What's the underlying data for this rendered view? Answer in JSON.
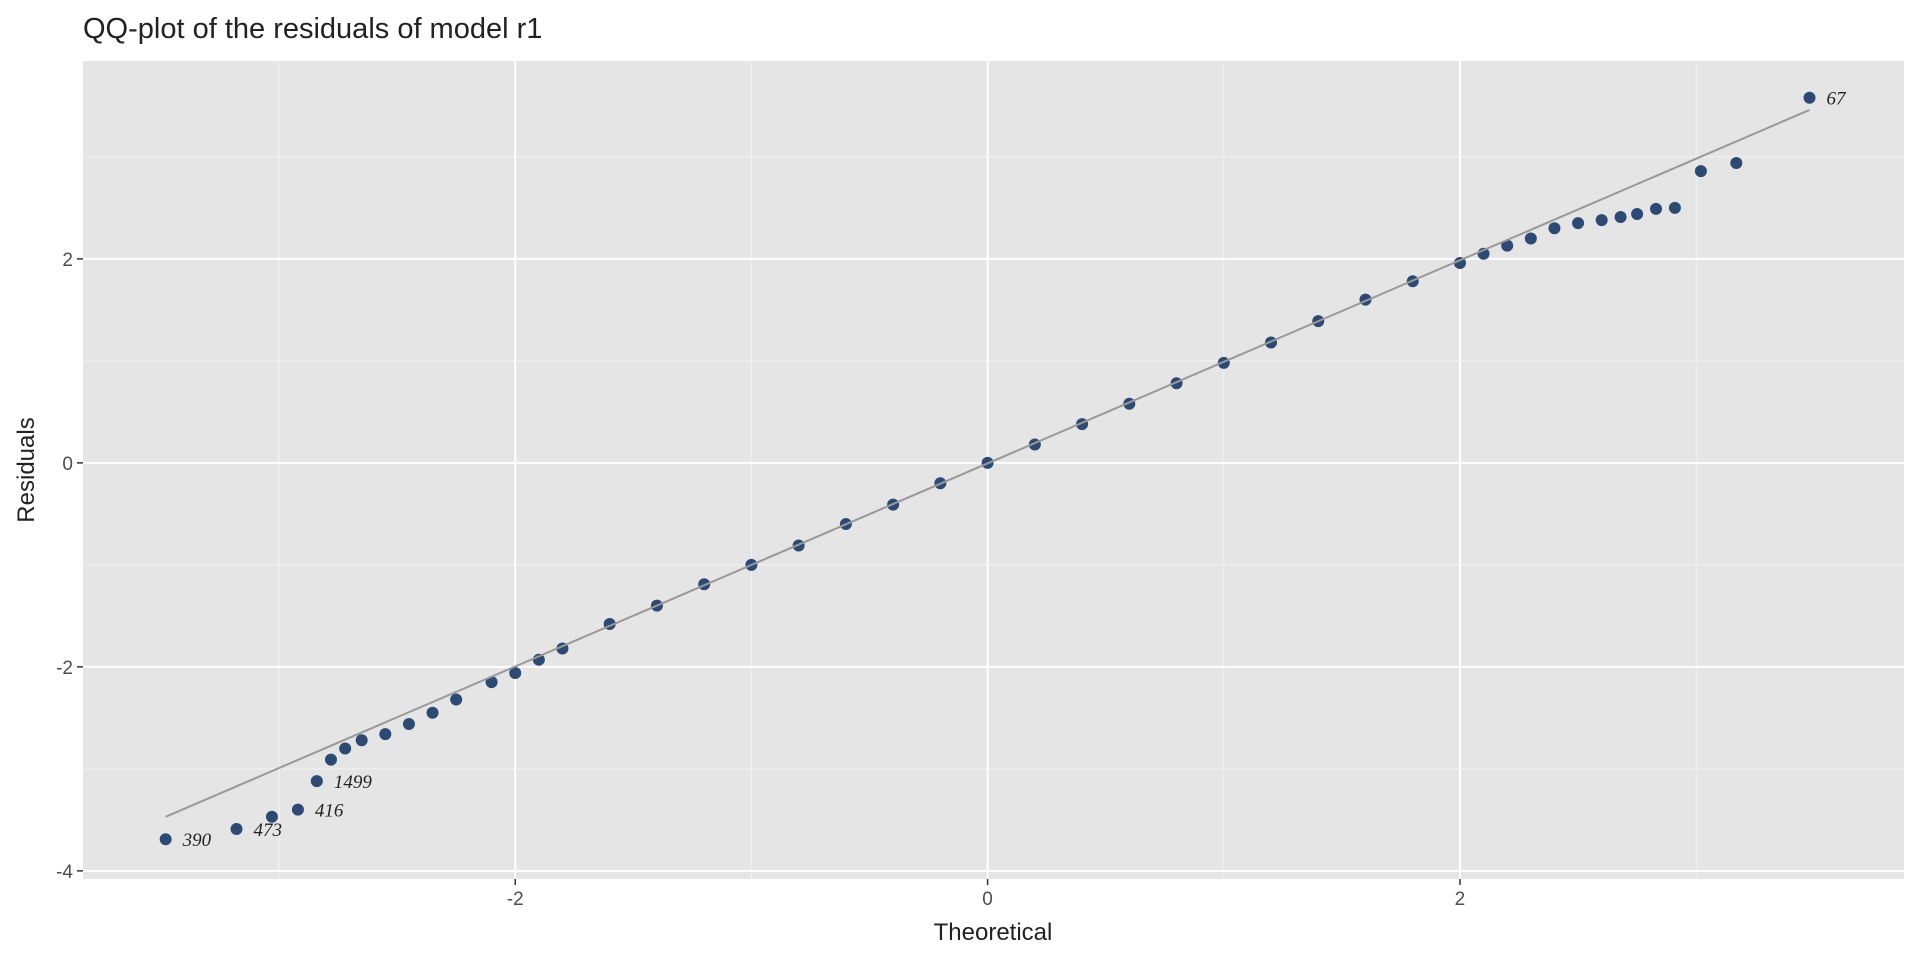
{
  "chart_data": {
    "type": "scatter",
    "title": "QQ-plot of the residuals of model r1",
    "x_label": "Theoretical",
    "y_label": "Residuals",
    "color": "#2c4a73",
    "line_color": "#999999",
    "annotation_color": "#8b0000",
    "xlim": [
      -3.83,
      3.88
    ],
    "ylim": [
      -4.08,
      3.94
    ],
    "xticks": [
      -2,
      0,
      2
    ],
    "yticks": [
      -4,
      -2,
      0,
      2
    ],
    "x_minor_grid": [
      -3,
      -1,
      1,
      3
    ],
    "y_minor_grid": [
      -3,
      -1,
      1,
      3
    ],
    "grid": true,
    "x": [
      -3.48,
      -3.18,
      -3.03,
      -2.92,
      -2.84,
      -2.78,
      -2.72,
      -2.65,
      -2.55,
      -2.45,
      -2.35,
      -2.25,
      -2.1,
      -2.0,
      -1.9,
      -1.8,
      -1.6,
      -1.4,
      -1.2,
      -1.0,
      -0.8,
      -0.6,
      -0.4,
      -0.2,
      0,
      0.2,
      0.4,
      0.6,
      0.8,
      1.0,
      1.2,
      1.4,
      1.6,
      1.8,
      2.0,
      2.1,
      2.2,
      2.3,
      2.4,
      2.5,
      2.6,
      2.68,
      2.75,
      2.83,
      2.91,
      3.02,
      3.17,
      3.48
    ],
    "y": [
      -3.69,
      -3.59,
      -3.47,
      -3.4,
      -3.12,
      -2.91,
      -2.8,
      -2.72,
      -2.66,
      -2.56,
      -2.45,
      -2.32,
      -2.15,
      -2.06,
      -1.93,
      -1.82,
      -1.58,
      -1.4,
      -1.19,
      -1.0,
      -0.81,
      -0.6,
      -0.41,
      -0.2,
      0.0,
      0.18,
      0.38,
      0.58,
      0.78,
      0.98,
      1.18,
      1.39,
      1.6,
      1.78,
      1.96,
      2.05,
      2.13,
      2.2,
      2.3,
      2.35,
      2.38,
      2.41,
      2.44,
      2.49,
      2.5,
      2.86,
      2.94,
      3.58
    ],
    "reference_line": {
      "x": [
        -3.48,
        3.48
      ],
      "y": [
        -3.47,
        3.46
      ]
    },
    "annotations": [
      {
        "text": "390",
        "x": -3.48,
        "y": -3.69
      },
      {
        "text": "473",
        "x": -3.18,
        "y": -3.59
      },
      {
        "text": "416",
        "x": -2.92,
        "y": -3.4
      },
      {
        "text": "1499",
        "x": -2.84,
        "y": -3.12
      },
      {
        "text": "67",
        "x": 3.48,
        "y": 3.58
      }
    ]
  }
}
